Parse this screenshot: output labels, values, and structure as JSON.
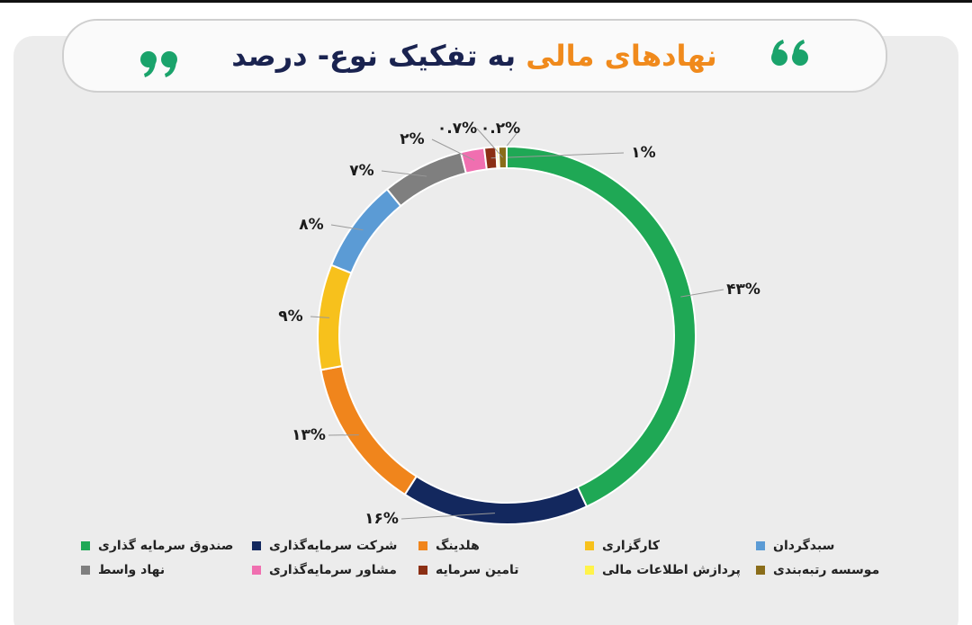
{
  "chart_data": {
    "type": "donut",
    "title": {
      "highlight": "نهادهای مالی",
      "rest": "به تفکیک نوع- درصد"
    },
    "categories": [
      "صندوق سرمایه گذاری",
      "شرکت سرمایه‌گذاری",
      "هلدینگ",
      "کارگزاری",
      "سبدگردان",
      "نهاد واسط",
      "مشاور سرمایه‌گذاری",
      "تامین سرمایه",
      "پردازش اطلاعات مالی",
      "موسسه رتبه‌بندی"
    ],
    "values": [
      43,
      16,
      13,
      9,
      8,
      7,
      2,
      1,
      0.2,
      0.7
    ],
    "value_labels": [
      "۴۳%",
      "۱۶%",
      "۱۳%",
      "۹%",
      "۸%",
      "۷%",
      "۲%",
      "۱%",
      "۰.۲%",
      "۰.۷%"
    ],
    "colors": [
      "#1fa855",
      "#13285e",
      "#f0851c",
      "#f7c11c",
      "#5b9bd5",
      "#7f7f7f",
      "#f06fb0",
      "#8b2f14",
      "#fff34a",
      "#8a6d1a"
    ]
  }
}
